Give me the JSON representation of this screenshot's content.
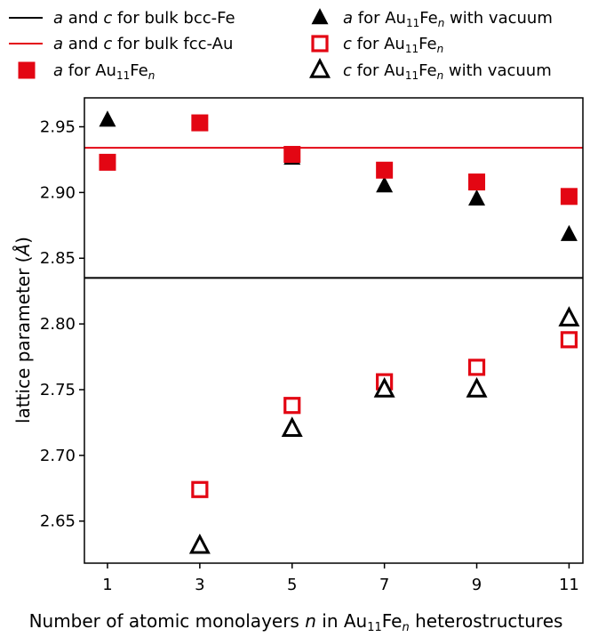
{
  "chart_data": {
    "type": "scatter",
    "xlabel": {
      "before": "Number of atomic monolayers ",
      "var": "n",
      "mid": " in Au",
      "sub": "11",
      "fe": "Fe",
      "var2": "n",
      "after": " heterostructures"
    },
    "ylabel": {
      "before": "lattice parameter (",
      "unit": "Å",
      "after": ")"
    },
    "xticks": [
      1,
      3,
      5,
      7,
      9,
      11
    ],
    "yticks": [
      "2.65",
      "2.70",
      "2.75",
      "2.80",
      "2.85",
      "2.90",
      "2.95"
    ],
    "xlim": [
      0.5,
      11.3
    ],
    "ylim": [
      2.618,
      2.972
    ],
    "legend_placement": "top",
    "lines": [
      {
        "key": "bcc",
        "y": 2.835,
        "color": "#000000"
      },
      {
        "key": "fcc",
        "y": 2.934,
        "color": "#e30613"
      }
    ],
    "series": [
      {
        "key": "a_vac",
        "marker": "triangle-filled",
        "color": "#000000",
        "x": [
          1,
          3,
          5,
          7,
          9,
          11
        ],
        "y": [
          2.955,
          2.952,
          2.926,
          2.905,
          2.895,
          2.868
        ]
      },
      {
        "key": "a",
        "marker": "square-filled",
        "color": "#e30613",
        "x": [
          1,
          3,
          5,
          7,
          9,
          11
        ],
        "y": [
          2.923,
          2.953,
          2.929,
          2.917,
          2.908,
          2.897
        ]
      },
      {
        "key": "c",
        "marker": "square-open",
        "color": "#e30613",
        "x": [
          3,
          5,
          7,
          9,
          11
        ],
        "y": [
          2.674,
          2.738,
          2.756,
          2.767,
          2.788
        ]
      },
      {
        "key": "c_vac",
        "marker": "triangle-open",
        "color": "#000000",
        "x": [
          3,
          5,
          7,
          9,
          11
        ],
        "y": [
          2.631,
          2.72,
          2.75,
          2.75,
          2.804
        ]
      }
    ],
    "legend": [
      {
        "key": "bcc",
        "kind": "line",
        "color": "#000000",
        "a": "a",
        "t1": " and ",
        "c": "c",
        "t2": " for bulk bcc-Fe"
      },
      {
        "key": "fcc",
        "kind": "line",
        "color": "#e30613",
        "a": "a",
        "t1": " and ",
        "c": "c",
        "t2": " for bulk fcc-Au"
      },
      {
        "key": "a",
        "kind": "square-filled",
        "color": "#e30613",
        "v": "a",
        "t1": " for Au",
        "sub": "11",
        "fe": "Fe",
        "n": "n",
        "t2": ""
      },
      {
        "key": "a_vac",
        "kind": "triangle-filled",
        "color": "#000000",
        "v": "a",
        "t1": " for Au",
        "sub": "11",
        "fe": "Fe",
        "n": "n",
        "t2": " with vacuum"
      },
      {
        "key": "c",
        "kind": "square-open",
        "color": "#e30613",
        "v": "c",
        "t1": " for Au",
        "sub": "11",
        "fe": "Fe",
        "n": "n",
        "t2": ""
      },
      {
        "key": "c_vac",
        "kind": "triangle-open",
        "color": "#000000",
        "v": "c",
        "t1": " for Au",
        "sub": "11",
        "fe": "Fe",
        "n": "n",
        "t2": " with vacuum"
      }
    ]
  }
}
